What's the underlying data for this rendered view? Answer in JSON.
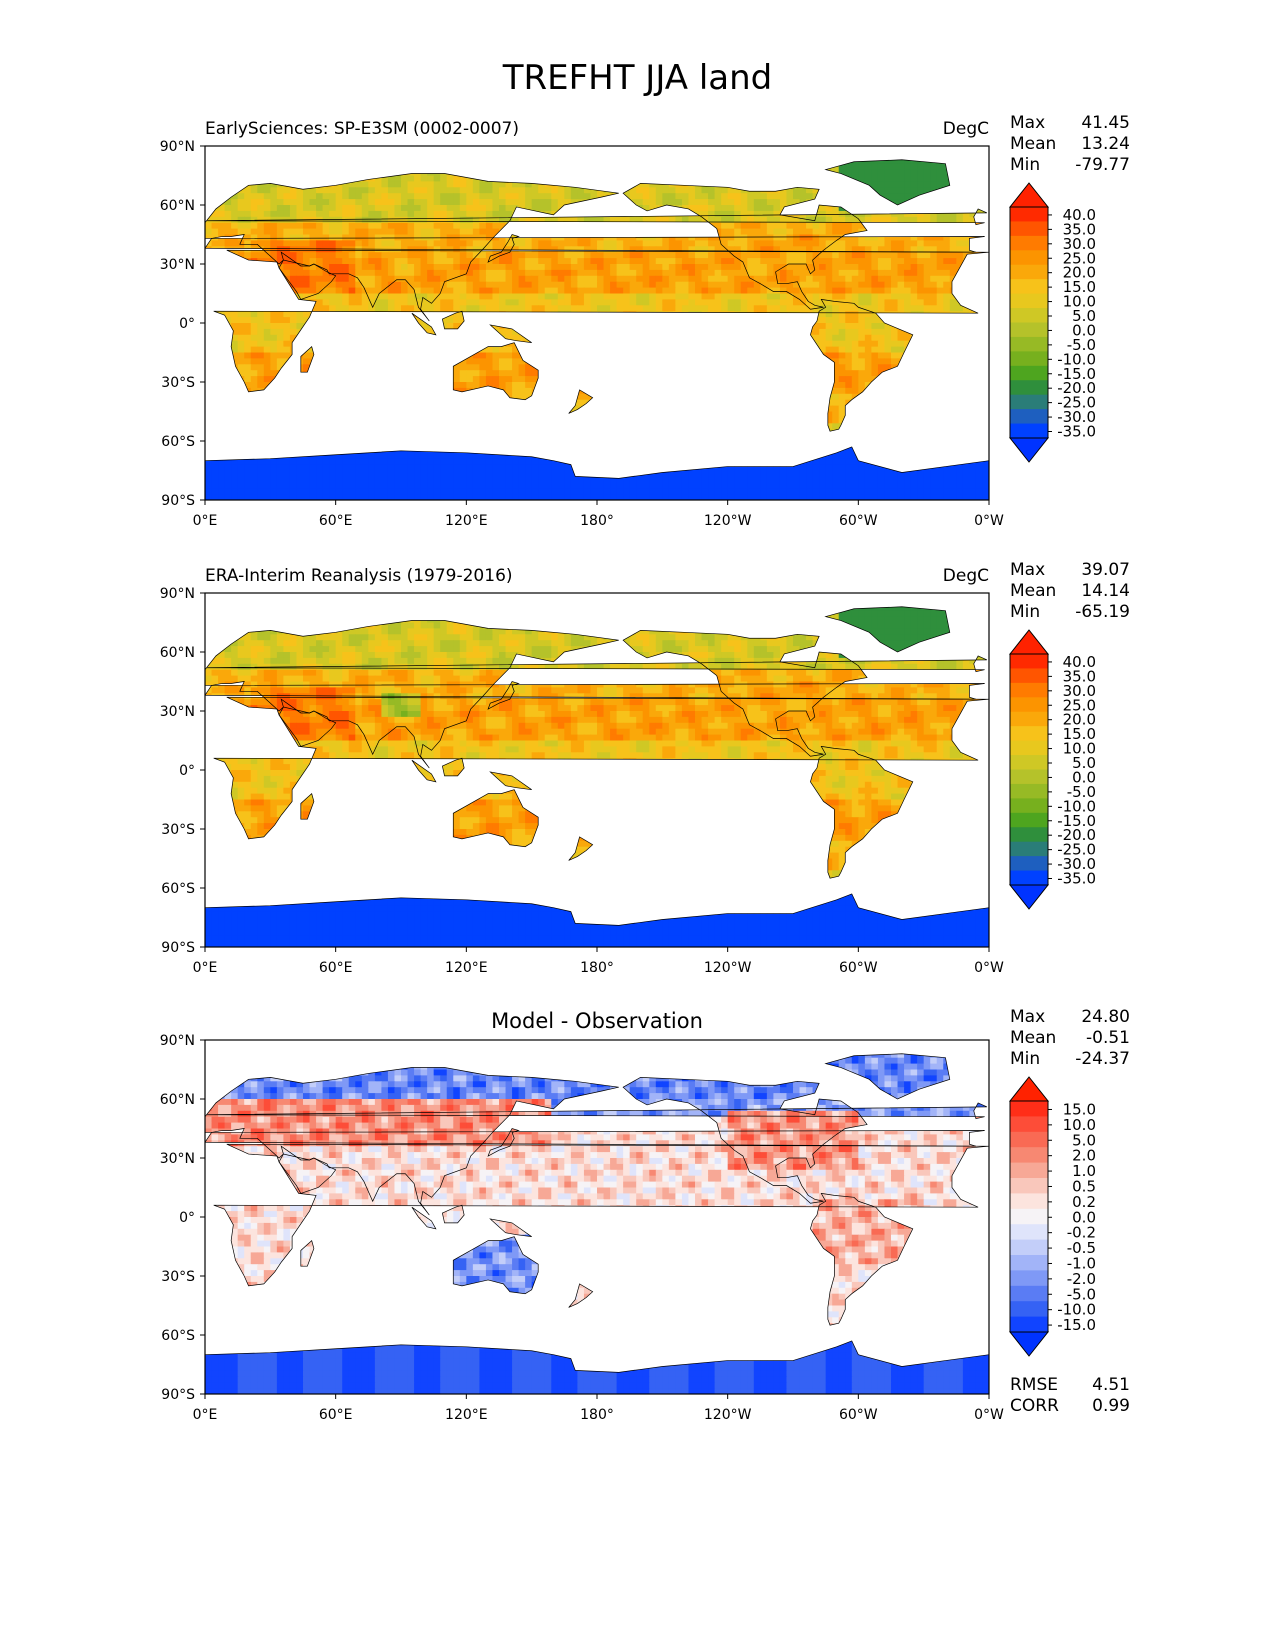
{
  "page": {
    "title": "TREFHT JJA land"
  },
  "chart_data": [
    {
      "type": "heatmap",
      "title_left": "EarlySciences: SP-E3SM (0002-0007)",
      "title_center": "",
      "units": "DegC",
      "stats": {
        "max": "41.45",
        "mean": "13.24",
        "min": "-79.77"
      },
      "x_ticks": [
        "0°E",
        "60°E",
        "120°E",
        "180°",
        "120°W",
        "60°W",
        "0°W"
      ],
      "y_ticks": [
        "90°N",
        "60°N",
        "30°N",
        "0°",
        "30°S",
        "60°S",
        "90°S"
      ],
      "xlim": [
        0,
        360
      ],
      "ylim": [
        -90,
        90
      ],
      "colorbar": {
        "extend": "both",
        "labels": [
          "40.0",
          "35.0",
          "30.0",
          "25.0",
          "20.0",
          "15.0",
          "10.0",
          "5.0",
          "0.0",
          "-5.0",
          "-10.0",
          "-15.0",
          "-20.0",
          "-25.0",
          "-30.0",
          "-35.0"
        ],
        "colors": [
          "#ff2a00",
          "#ff5500",
          "#ff7b00",
          "#fc9400",
          "#faa80a",
          "#f7c21a",
          "#e8c81e",
          "#cfc825",
          "#b5c22a",
          "#97ba25",
          "#77b01e",
          "#4ea51f",
          "#2f8f3c",
          "#2a7d78",
          "#1e5fbf",
          "#0041ff"
        ],
        "over_color": "#ff2200",
        "under_color": "#0033ff"
      },
      "field": "model"
    },
    {
      "type": "heatmap",
      "title_left": "ERA-Interim Reanalysis (1979-2016)",
      "title_center": "",
      "units": "DegC",
      "stats": {
        "max": "39.07",
        "mean": "14.14",
        "min": "-65.19"
      },
      "x_ticks": [
        "0°E",
        "60°E",
        "120°E",
        "180°",
        "120°W",
        "60°W",
        "0°W"
      ],
      "y_ticks": [
        "90°N",
        "60°N",
        "30°N",
        "0°",
        "30°S",
        "60°S",
        "90°S"
      ],
      "xlim": [
        0,
        360
      ],
      "ylim": [
        -90,
        90
      ],
      "colorbar": {
        "extend": "both",
        "labels": [
          "40.0",
          "35.0",
          "30.0",
          "25.0",
          "20.0",
          "15.0",
          "10.0",
          "5.0",
          "0.0",
          "-5.0",
          "-10.0",
          "-15.0",
          "-20.0",
          "-25.0",
          "-30.0",
          "-35.0"
        ],
        "colors": [
          "#ff2a00",
          "#ff5500",
          "#ff7b00",
          "#fc9400",
          "#faa80a",
          "#f7c21a",
          "#e8c81e",
          "#cfc825",
          "#b5c22a",
          "#97ba25",
          "#77b01e",
          "#4ea51f",
          "#2f8f3c",
          "#2a7d78",
          "#1e5fbf",
          "#0041ff"
        ],
        "over_color": "#ff2200",
        "under_color": "#0033ff"
      },
      "field": "obs"
    },
    {
      "type": "heatmap",
      "title_left": "",
      "title_center": "Model - Observation",
      "units": "",
      "stats": {
        "max": "24.80",
        "mean": "-0.51",
        "min": "-24.37"
      },
      "metrics": {
        "rmse_label": "RMSE",
        "rmse": "4.51",
        "corr_label": "CORR",
        "corr": "0.99"
      },
      "x_ticks": [
        "0°E",
        "60°E",
        "120°E",
        "180°",
        "120°W",
        "60°W",
        "0°W"
      ],
      "y_ticks": [
        "90°N",
        "60°N",
        "30°N",
        "0°",
        "30°S",
        "60°S",
        "90°S"
      ],
      "xlim": [
        0,
        360
      ],
      "ylim": [
        -90,
        90
      ],
      "colorbar": {
        "extend": "both",
        "labels": [
          "15.0",
          "10.0",
          "5.0",
          "2.0",
          "1.0",
          "0.5",
          "0.2",
          "0.0",
          "-0.2",
          "-0.5",
          "-1.0",
          "-2.0",
          "-5.0",
          "-10.0",
          "-15.0"
        ],
        "colors": [
          "#ff2e18",
          "#fd4d38",
          "#f96a54",
          "#f78872",
          "#f7a896",
          "#f9c7bb",
          "#fce4de",
          "#f6f3f6",
          "#dfe4fb",
          "#c3cef9",
          "#a2b4f8",
          "#7f99f6",
          "#5a7cf4",
          "#3562f4",
          "#1144ff"
        ],
        "over_color": "#ff2200",
        "under_color": "#0033ff"
      },
      "field": "diff"
    }
  ],
  "stat_labels": {
    "max": "Max",
    "mean": "Mean",
    "min": "Min"
  }
}
